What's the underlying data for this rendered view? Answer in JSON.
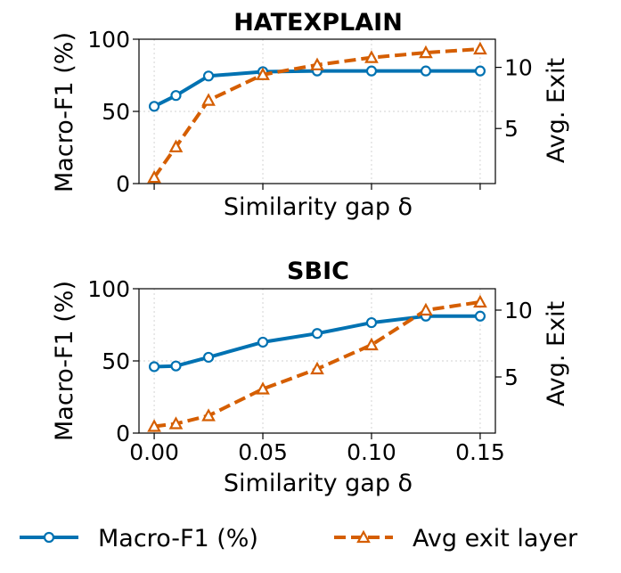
{
  "chart_data": [
    {
      "type": "line",
      "title": "HATEXPLAIN",
      "xlabel": "Similarity gap δ",
      "ylabel": "Macro-F1 (%)",
      "y2label": "Avg. Exit",
      "x": [
        0.0,
        0.01,
        0.025,
        0.05,
        0.075,
        0.1,
        0.125,
        0.15
      ],
      "xlim": [
        -0.007,
        0.157
      ],
      "ylim": [
        0,
        100
      ],
      "y2lim": [
        0.5,
        12.3
      ],
      "show_xticklabels": false,
      "series": [
        {
          "name": "Macro-F1 (%)",
          "axis": "left",
          "color": "#0072B2",
          "marker": "circle",
          "values": [
            53.5,
            61,
            74.5,
            77.5,
            78,
            78,
            78,
            78
          ]
        },
        {
          "name": "Avg exit layer",
          "axis": "right",
          "color": "#D55E00",
          "marker": "triangle",
          "values": [
            1.0,
            3.5,
            7.3,
            9.4,
            10.2,
            10.8,
            11.2,
            11.5
          ]
        }
      ]
    },
    {
      "type": "line",
      "title": "SBIC",
      "xlabel": "Similarity gap δ",
      "ylabel": "Macro-F1 (%)",
      "y2label": "Avg. Exit",
      "x": [
        0.0,
        0.01,
        0.025,
        0.05,
        0.075,
        0.1,
        0.125,
        0.15
      ],
      "xlim": [
        -0.007,
        0.157
      ],
      "ylim": [
        0,
        100
      ],
      "y2lim": [
        0.8,
        11.6
      ],
      "show_xticklabels": true,
      "series": [
        {
          "name": "Macro-F1 (%)",
          "axis": "left",
          "color": "#0072B2",
          "marker": "circle",
          "values": [
            46,
            46.5,
            52.5,
            63,
            69,
            76.5,
            81,
            81
          ]
        },
        {
          "name": "Avg exit layer",
          "axis": "right",
          "color": "#D55E00",
          "marker": "triangle",
          "values": [
            1.3,
            1.5,
            2.1,
            4.1,
            5.6,
            7.4,
            10.0,
            10.6
          ]
        }
      ]
    }
  ],
  "axes": {
    "ticks_x": [
      "0.00",
      "0.05",
      "0.10",
      "0.15"
    ],
    "ticks_x_values": [
      0.0,
      0.05,
      0.1,
      0.15
    ],
    "ticks_y": [
      "0",
      "50",
      "100"
    ],
    "ticks_y_values": [
      0,
      50,
      100
    ],
    "ticks_y2": [
      "5",
      "10"
    ],
    "ticks_y2_values": [
      5,
      10
    ]
  },
  "legend": {
    "position": "bottom-center",
    "items": [
      {
        "label": "Macro-F1 (%)",
        "color": "#0072B2",
        "marker": "circle",
        "style": "solid"
      },
      {
        "label": "Avg exit layer",
        "color": "#D55E00",
        "marker": "triangle",
        "style": "dashed"
      }
    ]
  }
}
